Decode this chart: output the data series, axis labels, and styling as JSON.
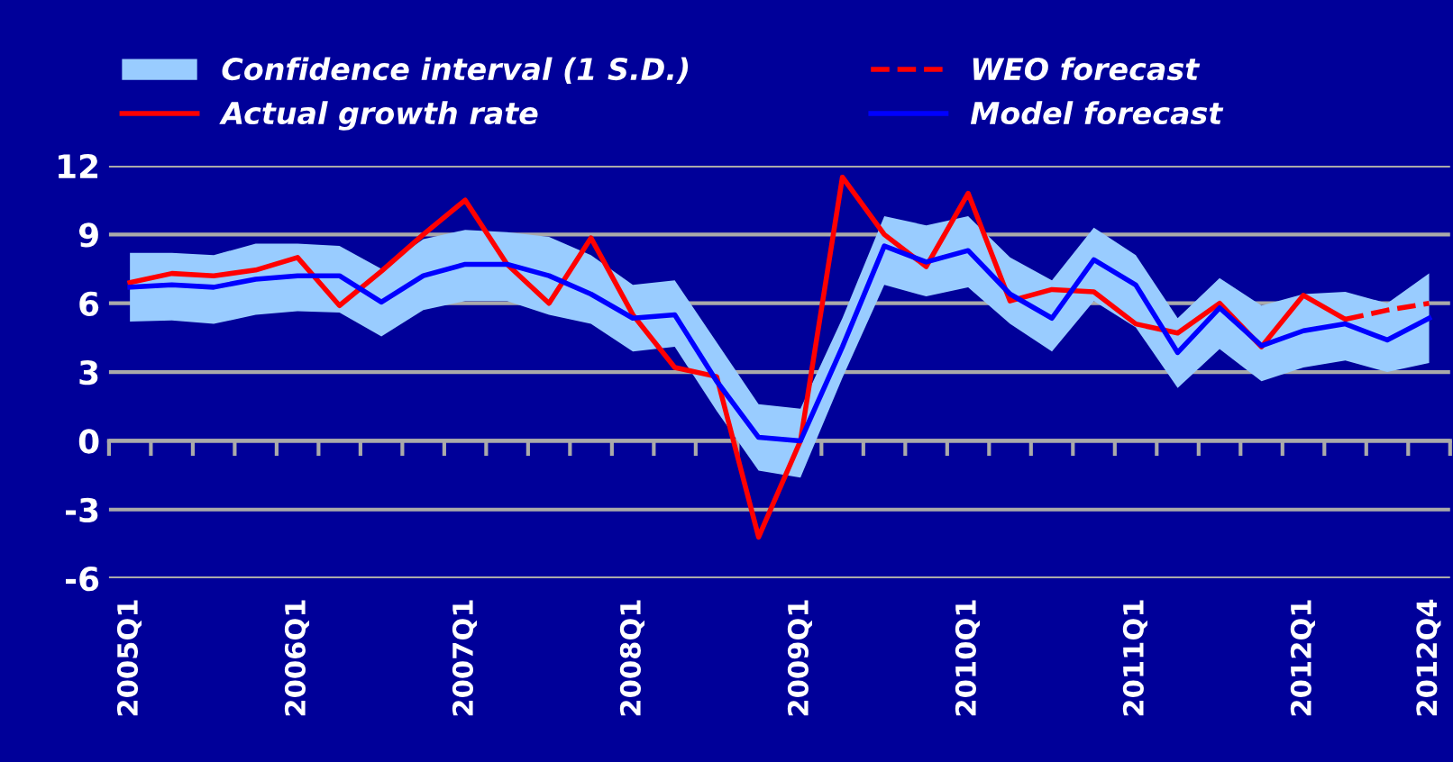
{
  "chart_data": {
    "type": "line",
    "categories": [
      "2005Q1",
      null,
      null,
      null,
      "2006Q1",
      null,
      null,
      null,
      "2007Q1",
      null,
      null,
      null,
      "2008Q1",
      null,
      null,
      null,
      "2009Q1",
      null,
      null,
      null,
      "2010Q1",
      null,
      null,
      null,
      "2011Q1",
      null,
      null,
      null,
      "2012Q1",
      null,
      null,
      "2012Q4"
    ],
    "series": [
      {
        "name": "WEO forecast",
        "color": "#ff0000",
        "line_style": "dashed",
        "values": [
          null,
          null,
          null,
          null,
          null,
          null,
          null,
          null,
          null,
          null,
          null,
          null,
          null,
          null,
          null,
          null,
          null,
          null,
          null,
          null,
          null,
          null,
          null,
          null,
          null,
          null,
          null,
          null,
          null,
          5.3,
          5.7,
          6.0
        ]
      },
      {
        "name": "Actual growth rate",
        "color": "#ff0000",
        "line_style": "solid",
        "values": [
          6.9,
          7.3,
          7.2,
          7.45,
          8.0,
          5.9,
          7.4,
          9.0,
          10.5,
          7.7,
          6.0,
          8.85,
          5.5,
          3.2,
          2.8,
          -4.2,
          0.0,
          11.5,
          9.0,
          7.6,
          10.8,
          6.1,
          6.6,
          6.5,
          5.1,
          4.7,
          6.0,
          4.1,
          6.35,
          5.3,
          null,
          null
        ]
      },
      {
        "name": "Model forecast",
        "color": "#0000ff",
        "line_style": "solid",
        "values": [
          6.7,
          6.8,
          6.7,
          7.05,
          7.2,
          7.2,
          6.05,
          7.2,
          7.7,
          7.7,
          7.2,
          6.4,
          5.35,
          5.5,
          2.6,
          0.15,
          0.0,
          4.1,
          8.5,
          7.8,
          8.3,
          6.4,
          5.35,
          7.9,
          6.8,
          3.85,
          5.8,
          4.15,
          4.8,
          5.1,
          4.4,
          5.35
        ],
        "lower": [
          5.2,
          5.25,
          5.1,
          5.5,
          5.65,
          5.6,
          4.55,
          5.7,
          6.1,
          6.1,
          5.5,
          5.1,
          3.9,
          4.1,
          1.3,
          -1.3,
          -1.6,
          2.75,
          6.8,
          6.3,
          6.7,
          5.1,
          3.9,
          6.1,
          4.95,
          2.3,
          4.0,
          2.6,
          3.2,
          3.5,
          3.0,
          3.4
        ],
        "upper": [
          8.2,
          8.2,
          8.1,
          8.6,
          8.6,
          8.5,
          7.5,
          8.8,
          9.2,
          9.1,
          8.9,
          8.1,
          6.8,
          7.0,
          4.3,
          1.6,
          1.4,
          5.35,
          9.8,
          9.4,
          9.8,
          8.0,
          7.0,
          9.3,
          8.1,
          5.35,
          7.1,
          5.9,
          6.4,
          6.5,
          6.0,
          7.3
        ]
      }
    ],
    "annotations": [
      "Confidence interval (1 S.D.)"
    ],
    "ylim": [
      -6,
      12
    ],
    "yticks": [
      -6,
      -3,
      0,
      3,
      6,
      9,
      12
    ],
    "grid": "y",
    "legend": "top",
    "marker": "none"
  }
}
